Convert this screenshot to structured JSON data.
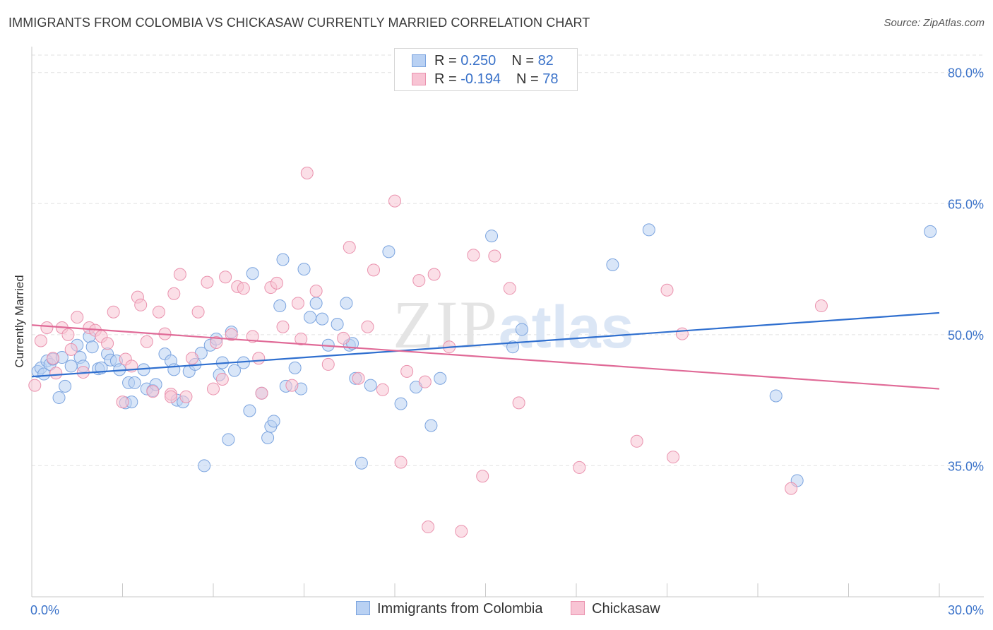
{
  "title": "IMMIGRANTS FROM COLOMBIA VS CHICKASAW CURRENTLY MARRIED CORRELATION CHART",
  "source": "Source: ZipAtlas.com",
  "watermark": {
    "zip": "ZIP",
    "atlas": "atlas"
  },
  "colors": {
    "blue_fill": "#b9d1f3",
    "blue_stroke": "#7ba4df",
    "blue_line": "#2f6fcf",
    "pink_fill": "#f8c4d4",
    "pink_stroke": "#ea92ae",
    "pink_line": "#e06a97",
    "value_text": "#3a72c9",
    "grid": "#e2e2e2"
  },
  "legend_top": [
    {
      "r_label": "R =",
      "r_value": "0.250",
      "n_label": "N =",
      "n_value": "82"
    },
    {
      "r_label": "R =",
      "r_value": "-0.194",
      "n_label": "N =",
      "n_value": "78"
    }
  ],
  "chart_data": {
    "type": "scatter",
    "title": "IMMIGRANTS FROM COLOMBIA VS CHICKASAW CURRENTLY MARRIED CORRELATION CHART",
    "xlabel": "",
    "ylabel": "Currently Married",
    "xlim": [
      0,
      30
    ],
    "ylim": [
      20,
      82
    ],
    "x_tick_labels": [
      "0.0%",
      "30.0%"
    ],
    "y_ticks": [
      35,
      50,
      65,
      80
    ],
    "y_tick_labels": [
      "35.0%",
      "50.0%",
      "65.0%",
      "80.0%"
    ],
    "grid": true,
    "legend_position": "top-center",
    "series": [
      {
        "name": "Immigrants from Colombia",
        "trendline": {
          "x": [
            0,
            30
          ],
          "y": [
            45.2,
            52.5
          ]
        },
        "points": [
          [
            0.2,
            45.8
          ],
          [
            0.3,
            46.2
          ],
          [
            0.4,
            45.5
          ],
          [
            0.5,
            47
          ],
          [
            0.6,
            46.6
          ],
          [
            0.7,
            47.2
          ],
          [
            0.9,
            42.8
          ],
          [
            1.0,
            47.4
          ],
          [
            1.1,
            44.1
          ],
          [
            1.3,
            46.4
          ],
          [
            1.5,
            48.8
          ],
          [
            1.6,
            47.4
          ],
          [
            1.7,
            46.4
          ],
          [
            1.9,
            49.8
          ],
          [
            2.0,
            48.6
          ],
          [
            2.2,
            46.1
          ],
          [
            2.3,
            46.2
          ],
          [
            2.5,
            47.8
          ],
          [
            2.6,
            47.1
          ],
          [
            2.8,
            47
          ],
          [
            2.9,
            46
          ],
          [
            3.1,
            42.2
          ],
          [
            3.2,
            44.5
          ],
          [
            3.3,
            42.3
          ],
          [
            3.4,
            44.5
          ],
          [
            3.7,
            46
          ],
          [
            3.8,
            43.8
          ],
          [
            4.0,
            43.6
          ],
          [
            4.1,
            44.3
          ],
          [
            4.4,
            47.8
          ],
          [
            4.6,
            47
          ],
          [
            4.7,
            46
          ],
          [
            4.8,
            42.5
          ],
          [
            5.0,
            42.3
          ],
          [
            5.2,
            45.8
          ],
          [
            5.4,
            46.6
          ],
          [
            5.6,
            47.9
          ],
          [
            5.7,
            35
          ],
          [
            5.9,
            48.8
          ],
          [
            6.1,
            49.5
          ],
          [
            6.2,
            45.4
          ],
          [
            6.3,
            46.8
          ],
          [
            6.5,
            38
          ],
          [
            6.6,
            50.3
          ],
          [
            6.7,
            45.9
          ],
          [
            7.0,
            46.8
          ],
          [
            7.2,
            41.3
          ],
          [
            7.3,
            57
          ],
          [
            7.6,
            43.3
          ],
          [
            7.8,
            38.2
          ],
          [
            7.9,
            39.5
          ],
          [
            8.0,
            40.1
          ],
          [
            8.2,
            53.3
          ],
          [
            8.3,
            58.6
          ],
          [
            8.4,
            44.1
          ],
          [
            8.7,
            46.2
          ],
          [
            8.9,
            43.8
          ],
          [
            9.0,
            57.5
          ],
          [
            9.2,
            52
          ],
          [
            9.4,
            53.6
          ],
          [
            9.6,
            51.8
          ],
          [
            9.8,
            48.8
          ],
          [
            10.1,
            51.2
          ],
          [
            10.4,
            53.6
          ],
          [
            10.5,
            48.8
          ],
          [
            10.6,
            49
          ],
          [
            10.7,
            45
          ],
          [
            10.9,
            35.3
          ],
          [
            11.2,
            44.2
          ],
          [
            11.8,
            59.5
          ],
          [
            12.2,
            42.1
          ],
          [
            12.7,
            44
          ],
          [
            13.2,
            39.6
          ],
          [
            13.5,
            45
          ],
          [
            15.2,
            61.3
          ],
          [
            15.9,
            48.6
          ],
          [
            16.2,
            50.6
          ],
          [
            19.2,
            58
          ],
          [
            20.4,
            62
          ],
          [
            24.6,
            43
          ],
          [
            25.3,
            33.3
          ],
          [
            29.7,
            61.8
          ]
        ]
      },
      {
        "name": "Chickasaw",
        "trendline": {
          "x": [
            0,
            30
          ],
          "y": [
            51.1,
            43.8
          ]
        },
        "points": [
          [
            0.1,
            44.2
          ],
          [
            0.3,
            49.3
          ],
          [
            0.5,
            50.8
          ],
          [
            0.7,
            47.3
          ],
          [
            0.8,
            45.6
          ],
          [
            1.0,
            50.8
          ],
          [
            1.2,
            50
          ],
          [
            1.3,
            48.3
          ],
          [
            1.5,
            52
          ],
          [
            1.7,
            45.7
          ],
          [
            1.9,
            50.8
          ],
          [
            2.1,
            50.5
          ],
          [
            2.3,
            49.8
          ],
          [
            2.5,
            49
          ],
          [
            2.7,
            52.6
          ],
          [
            3.0,
            42.3
          ],
          [
            3.1,
            47.2
          ],
          [
            3.3,
            46.4
          ],
          [
            3.5,
            54.3
          ],
          [
            3.6,
            53.4
          ],
          [
            3.8,
            49.2
          ],
          [
            4.0,
            43.5
          ],
          [
            4.2,
            52.6
          ],
          [
            4.4,
            50.1
          ],
          [
            4.6,
            43.2
          ],
          [
            4.7,
            54.7
          ],
          [
            4.9,
            56.9
          ],
          [
            5.1,
            42.9
          ],
          [
            5.3,
            47.3
          ],
          [
            5.5,
            52.6
          ],
          [
            5.8,
            56
          ],
          [
            6.0,
            43.8
          ],
          [
            6.1,
            49.1
          ],
          [
            6.3,
            44.9
          ],
          [
            6.4,
            56.6
          ],
          [
            6.6,
            50
          ],
          [
            6.8,
            55.5
          ],
          [
            7.0,
            55.3
          ],
          [
            7.3,
            49.8
          ],
          [
            7.5,
            47.3
          ],
          [
            7.6,
            43.3
          ],
          [
            7.9,
            55.4
          ],
          [
            8.1,
            55.9
          ],
          [
            8.3,
            50.9
          ],
          [
            8.6,
            44.2
          ],
          [
            8.8,
            53.6
          ],
          [
            8.9,
            49.5
          ],
          [
            9.1,
            68.5
          ],
          [
            9.4,
            55
          ],
          [
            9.8,
            46.6
          ],
          [
            10.3,
            49.6
          ],
          [
            10.5,
            60
          ],
          [
            10.8,
            45
          ],
          [
            11.1,
            50.9
          ],
          [
            11.3,
            57.4
          ],
          [
            11.6,
            43.7
          ],
          [
            12.0,
            65.3
          ],
          [
            12.2,
            35.4
          ],
          [
            12.4,
            45.8
          ],
          [
            12.8,
            56.2
          ],
          [
            13.0,
            44.6
          ],
          [
            13.1,
            28
          ],
          [
            13.3,
            56.9
          ],
          [
            14.2,
            27.5
          ],
          [
            14.6,
            59.1
          ],
          [
            14.9,
            33.8
          ],
          [
            15.3,
            59
          ],
          [
            15.8,
            55.3
          ],
          [
            16.1,
            42.2
          ],
          [
            18.1,
            34.8
          ],
          [
            20.0,
            37.8
          ],
          [
            21.0,
            55.1
          ],
          [
            21.2,
            36
          ],
          [
            21.5,
            50.1
          ],
          [
            25.1,
            32.4
          ],
          [
            26.1,
            53.3
          ],
          [
            13.8,
            48.6
          ],
          [
            4.6,
            42.9
          ]
        ]
      }
    ]
  },
  "legend_bottom": [
    "Immigrants from Colombia",
    "Chickasaw"
  ]
}
